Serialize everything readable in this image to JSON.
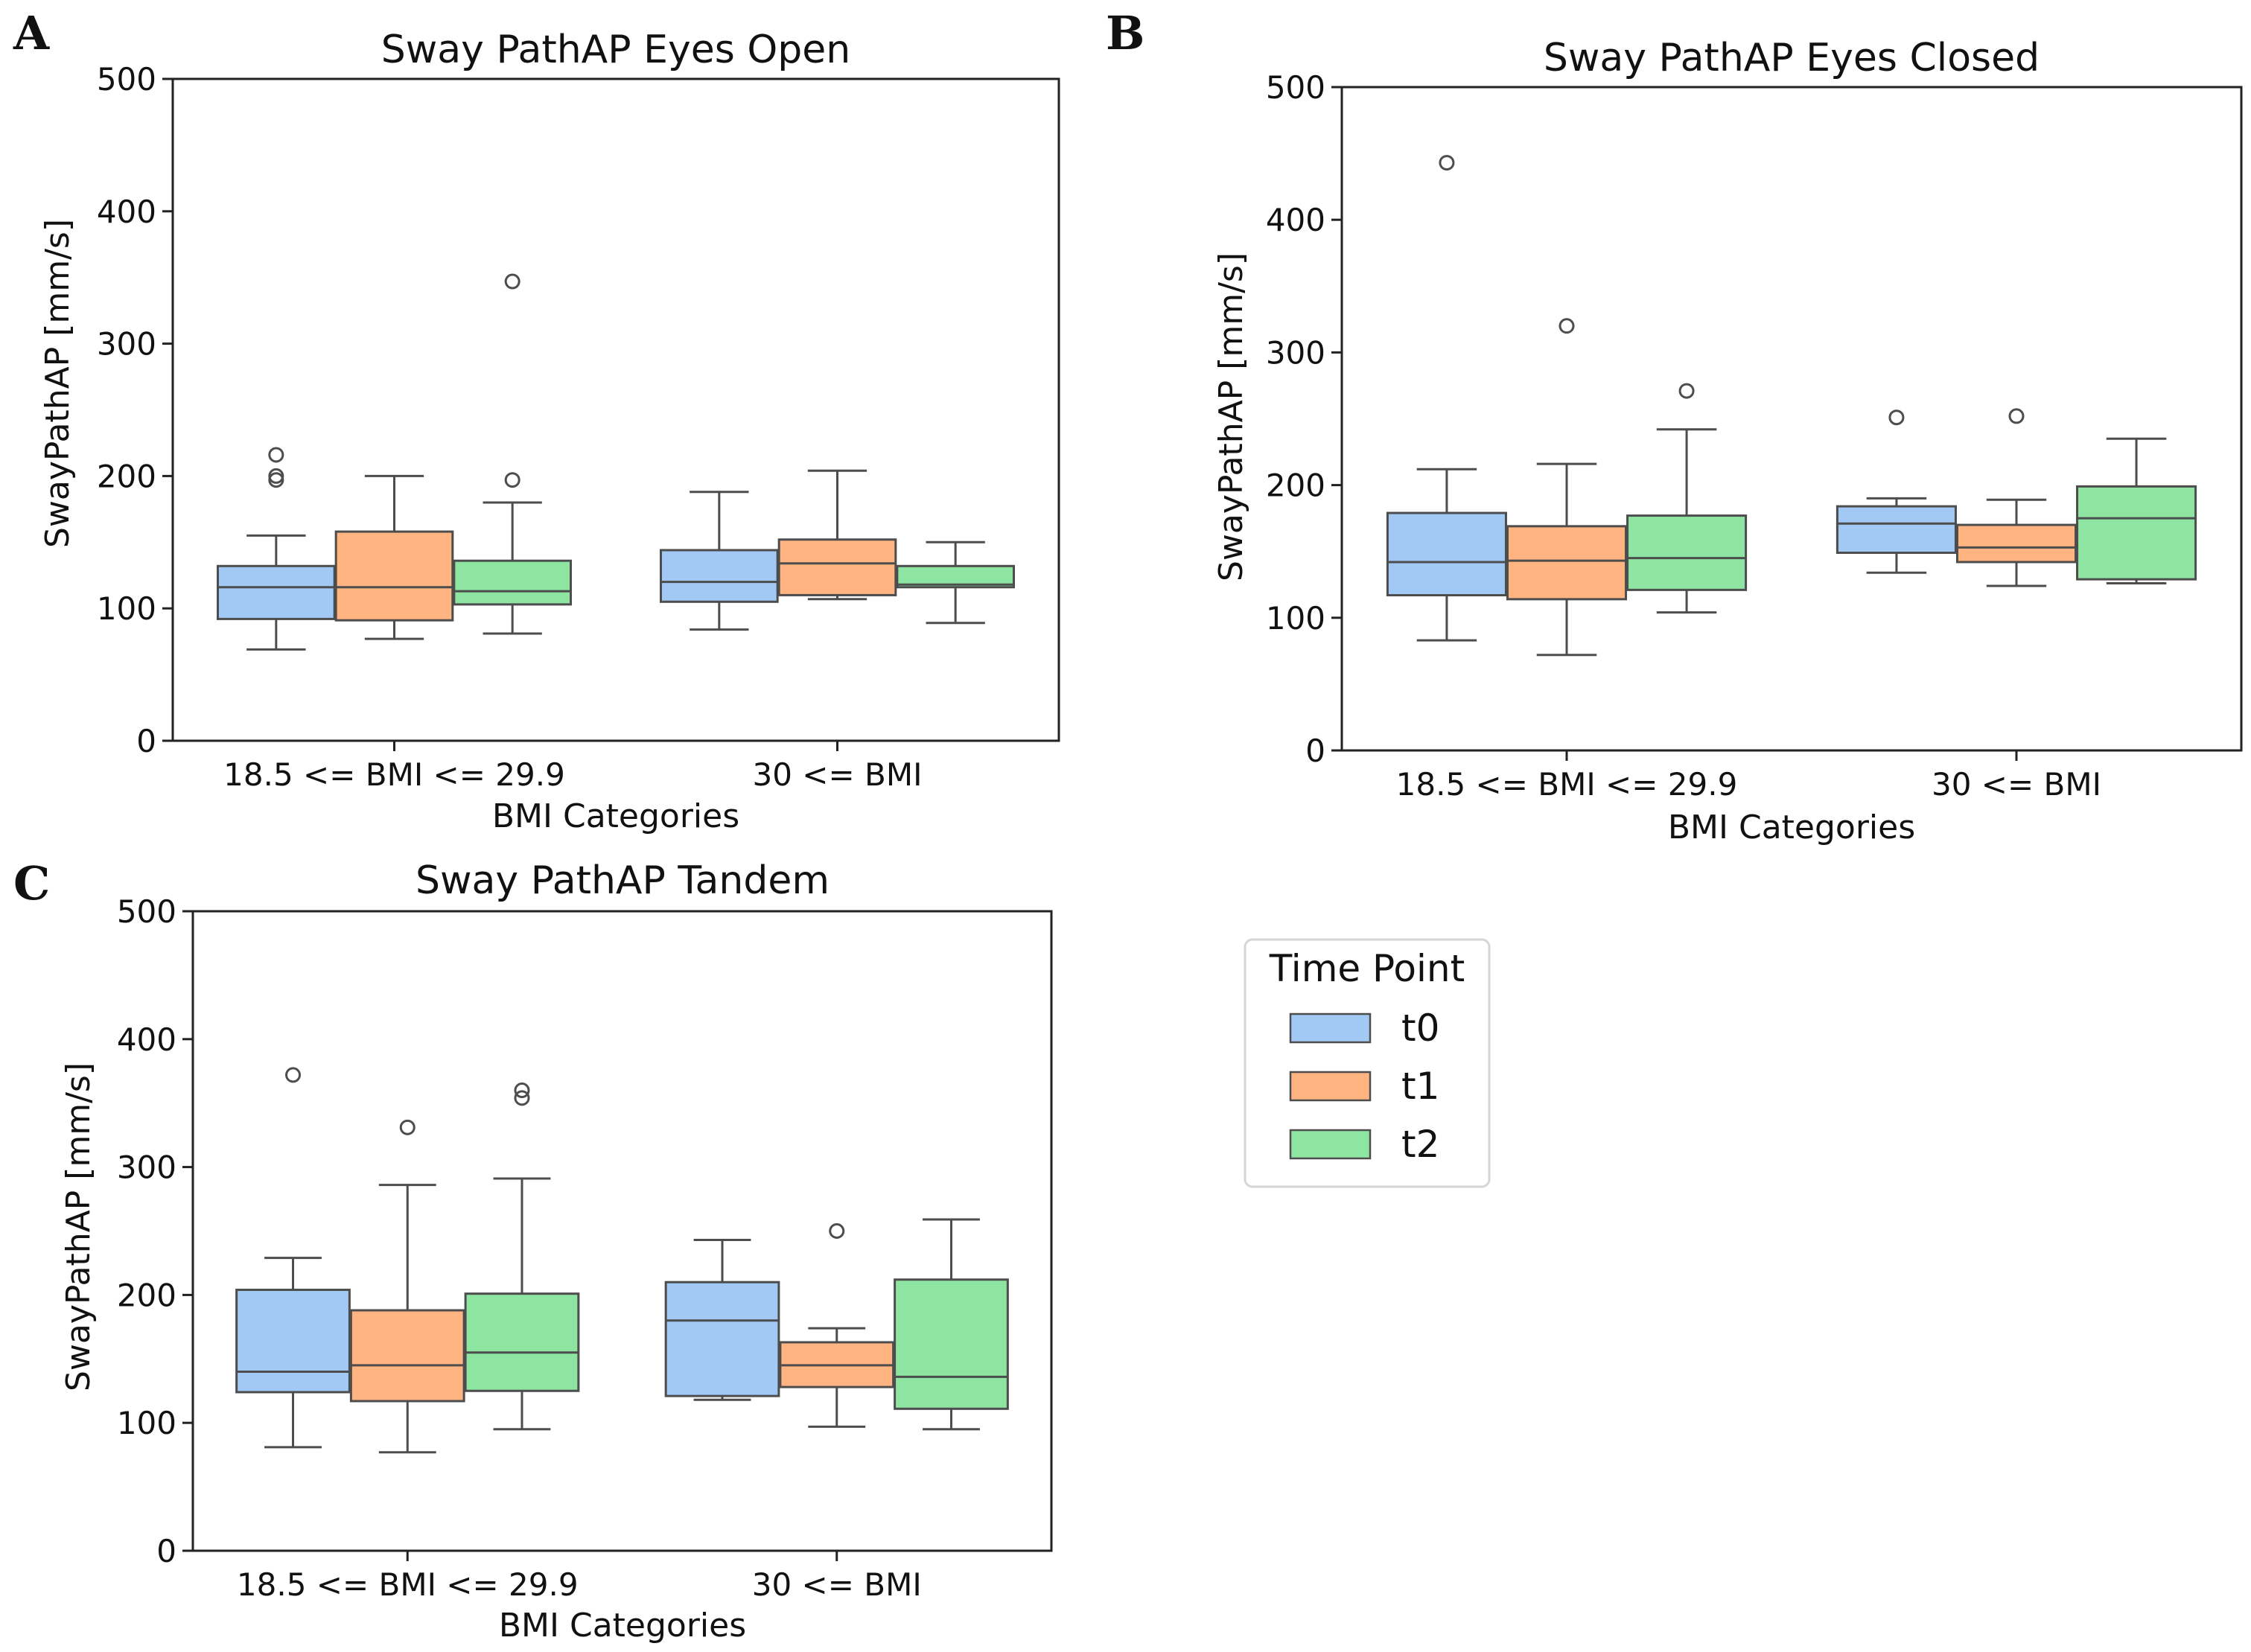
{
  "figure": {
    "legend": {
      "title": "Time Point",
      "placement": "right-middle",
      "entries": [
        {
          "label": "t0",
          "color": "#a1c9f4"
        },
        {
          "label": "t1",
          "color": "#ffb482"
        },
        {
          "label": "t2",
          "color": "#8de5a1"
        }
      ]
    }
  },
  "chart_data": [
    {
      "panel": "A",
      "type": "box",
      "title": "Sway PathAP Eyes Open",
      "xlabel": "BMI Categories",
      "ylabel": "SwayPathAP [mm/s]",
      "ylim": [
        0,
        500
      ],
      "yticks": [
        0,
        100,
        200,
        300,
        400,
        500
      ],
      "categories": [
        "18.5 <= BMI <= 29.9",
        "30 <= BMI"
      ],
      "grid": false,
      "series": [
        {
          "name": "t0",
          "color": "#a1c9f4",
          "boxes": [
            {
              "whislo": 69,
              "q1": 92,
              "med": 116,
              "q3": 132,
              "whishi": 155,
              "fliers": [
                197,
                200,
                216
              ]
            },
            {
              "whislo": 84,
              "q1": 105,
              "med": 120,
              "q3": 144,
              "whishi": 188,
              "fliers": []
            }
          ]
        },
        {
          "name": "t1",
          "color": "#ffb482",
          "boxes": [
            {
              "whislo": 77,
              "q1": 91,
              "med": 116,
              "q3": 158,
              "whishi": 200,
              "fliers": []
            },
            {
              "whislo": 107,
              "q1": 110,
              "med": 134,
              "q3": 152,
              "whishi": 204,
              "fliers": []
            }
          ]
        },
        {
          "name": "t2",
          "color": "#8de5a1",
          "boxes": [
            {
              "whislo": 81,
              "q1": 103,
              "med": 113,
              "q3": 136,
              "whishi": 180,
              "fliers": [
                197,
                347
              ]
            },
            {
              "whislo": 89,
              "q1": 116,
              "med": 118,
              "q3": 132,
              "whishi": 150,
              "fliers": []
            }
          ]
        }
      ]
    },
    {
      "panel": "B",
      "type": "box",
      "title": "Sway PathAP Eyes Closed",
      "xlabel": "BMI Categories",
      "ylabel": "SwayPathAP [mm/s]",
      "ylim": [
        0,
        500
      ],
      "yticks": [
        0,
        100,
        200,
        300,
        400,
        500
      ],
      "categories": [
        "18.5 <= BMI <= 29.9",
        "30 <= BMI"
      ],
      "grid": false,
      "series": [
        {
          "name": "t0",
          "color": "#a1c9f4",
          "boxes": [
            {
              "whislo": 83,
              "q1": 117,
              "med": 142,
              "q3": 179,
              "whishi": 212,
              "fliers": [
                443
              ]
            },
            {
              "whislo": 134,
              "q1": 149,
              "med": 171,
              "q3": 184,
              "whishi": 190,
              "fliers": [
                251
              ]
            }
          ]
        },
        {
          "name": "t1",
          "color": "#ffb482",
          "boxes": [
            {
              "whislo": 72,
              "q1": 114,
              "med": 143,
              "q3": 169,
              "whishi": 216,
              "fliers": [
                320
              ]
            },
            {
              "whislo": 124,
              "q1": 142,
              "med": 153,
              "q3": 170,
              "whishi": 189,
              "fliers": [
                252
              ]
            }
          ]
        },
        {
          "name": "t2",
          "color": "#8de5a1",
          "boxes": [
            {
              "whislo": 104,
              "q1": 121,
              "med": 145,
              "q3": 177,
              "whishi": 242,
              "fliers": [
                271
              ]
            },
            {
              "whislo": 126,
              "q1": 129,
              "med": 175,
              "q3": 199,
              "whishi": 235,
              "fliers": []
            }
          ]
        }
      ]
    },
    {
      "panel": "C",
      "type": "box",
      "title": "Sway PathAP Tandem",
      "xlabel": "BMI Categories",
      "ylabel": "SwayPathAP [mm/s]",
      "ylim": [
        0,
        500
      ],
      "yticks": [
        0,
        100,
        200,
        300,
        400,
        500
      ],
      "categories": [
        "18.5 <= BMI <= 29.9",
        "30 <= BMI"
      ],
      "grid": false,
      "series": [
        {
          "name": "t0",
          "color": "#a1c9f4",
          "boxes": [
            {
              "whislo": 81,
              "q1": 124,
              "med": 140,
              "q3": 204,
              "whishi": 229,
              "fliers": [
                372
              ]
            },
            {
              "whislo": 118,
              "q1": 121,
              "med": 180,
              "q3": 210,
              "whishi": 243,
              "fliers": []
            }
          ]
        },
        {
          "name": "t1",
          "color": "#ffb482",
          "boxes": [
            {
              "whislo": 77,
              "q1": 117,
              "med": 145,
              "q3": 188,
              "whishi": 286,
              "fliers": [
                331
              ]
            },
            {
              "whislo": 97,
              "q1": 128,
              "med": 145,
              "q3": 163,
              "whishi": 174,
              "fliers": [
                250
              ]
            }
          ]
        },
        {
          "name": "t2",
          "color": "#8de5a1",
          "boxes": [
            {
              "whislo": 95,
              "q1": 125,
              "med": 155,
              "q3": 201,
              "whishi": 291,
              "fliers": [
                354,
                360
              ]
            },
            {
              "whislo": 95,
              "q1": 111,
              "med": 136,
              "q3": 212,
              "whishi": 259,
              "fliers": []
            }
          ]
        }
      ]
    }
  ]
}
